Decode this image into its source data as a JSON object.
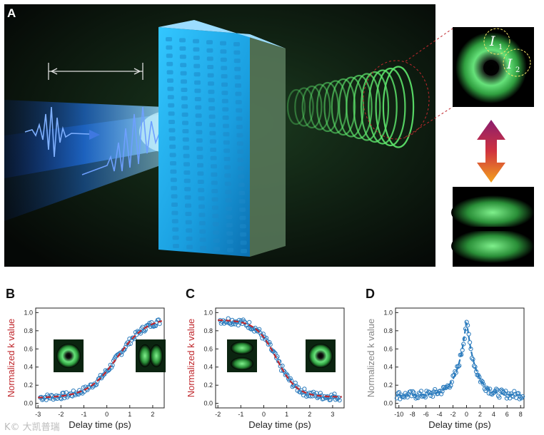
{
  "panel_a": {
    "letter": "A",
    "intensity_labels": [
      "I",
      "1",
      "I",
      "2"
    ]
  },
  "chart_data": [
    {
      "panel": "B",
      "type": "scatter",
      "xlabel": "Delay time (ps)",
      "ylabel": "Normalized k value",
      "xlim": [
        -3.1,
        2.5
      ],
      "ylim": [
        -0.05,
        1.05
      ],
      "xticks": [
        -3,
        -2,
        -1,
        0,
        1,
        2
      ],
      "yticks": [
        0.0,
        0.2,
        0.4,
        0.6,
        0.8,
        1.0
      ],
      "fit": {
        "x0": 0.45,
        "w": 0.65,
        "lo": 0.06,
        "hi": 0.95,
        "rising": true
      },
      "noise": 0.035,
      "colors": {
        "points": "#2b7bbd",
        "fit": "#c0282d",
        "ylabel": "#c0282d",
        "xlabel": "#222222"
      }
    },
    {
      "panel": "C",
      "type": "scatter",
      "xlabel": "Delay time (ps)",
      "ylabel": "Normalized k value",
      "xlim": [
        -2.1,
        3.5
      ],
      "ylim": [
        -0.05,
        1.05
      ],
      "xticks": [
        -2,
        -1,
        0,
        1,
        2,
        3
      ],
      "yticks": [
        0.0,
        0.2,
        0.4,
        0.6,
        0.8,
        1.0
      ],
      "fit": {
        "x0": 0.55,
        "w": 0.45,
        "lo": 0.07,
        "hi": 0.92,
        "rising": false
      },
      "noise": 0.04,
      "colors": {
        "points": "#2b7bbd",
        "fit": "#c0282d",
        "ylabel": "#c0282d",
        "xlabel": "#222222"
      }
    },
    {
      "panel": "D",
      "type": "scatter",
      "xlabel": "Delay time (ps)",
      "ylabel": "Normalized k value",
      "xlim": [
        -10.5,
        8.5
      ],
      "ylim": [
        -0.05,
        1.05
      ],
      "xticks": [
        -10,
        -8,
        -6,
        -4,
        -2,
        0,
        2,
        4,
        6,
        8
      ],
      "yticks": [
        0.0,
        0.2,
        0.4,
        0.6,
        0.8,
        1.0
      ],
      "fit": {
        "type": "peak",
        "x0": 0.0,
        "tau": 1.3,
        "lo": 0.09,
        "hi": 0.92
      },
      "noise": 0.045,
      "colors": {
        "points": "#2b7bbd",
        "fit": "#2b7bbd",
        "ylabel": "#888888",
        "xlabel": "#222222"
      }
    }
  ],
  "watermark": "K© 大凯普瑞"
}
